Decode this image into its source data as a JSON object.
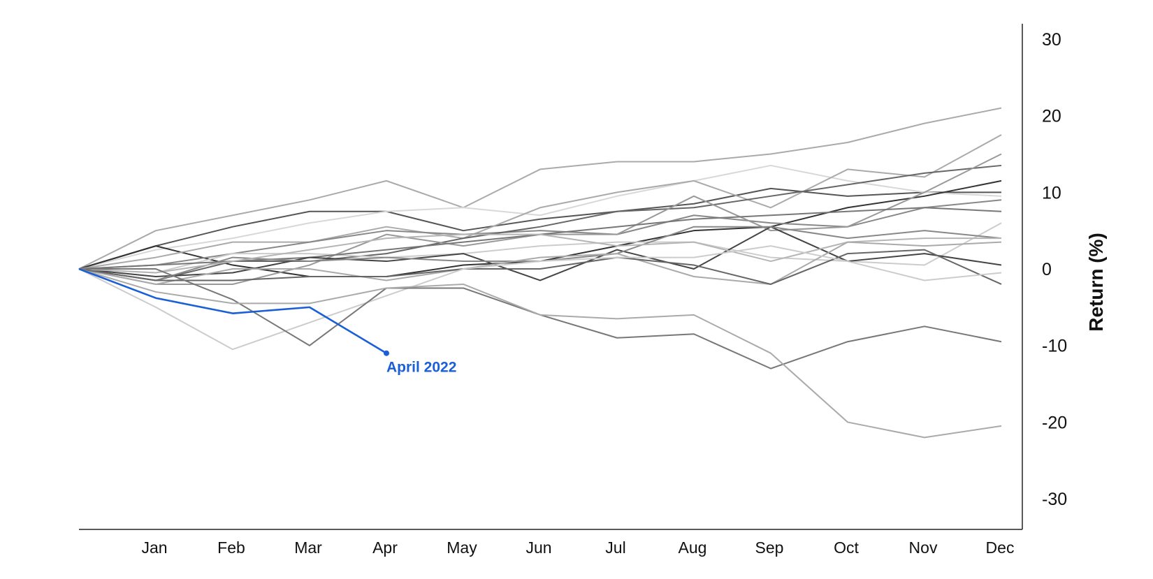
{
  "chart_data": {
    "type": "line",
    "title": "",
    "xlabel": "",
    "ylabel": "Return (%)",
    "x": [
      "",
      "Jan",
      "Feb",
      "Mar",
      "Apr",
      "May",
      "Jun",
      "Jul",
      "Aug",
      "Sep",
      "Oct",
      "Nov",
      "Dec"
    ],
    "x_tick_labels": [
      "Jan",
      "Feb",
      "Mar",
      "Apr",
      "May",
      "Jun",
      "Jul",
      "Aug",
      "Sep",
      "Oct",
      "Nov",
      "Dec"
    ],
    "ylim": [
      -34,
      32
    ],
    "y_ticks": [
      30,
      20,
      10,
      0,
      -10,
      -20,
      -30
    ],
    "y_axis_side": "right",
    "grid": false,
    "legend": "none",
    "highlight": {
      "label": "April 2022",
      "color": "#1a5fd6",
      "values": [
        0,
        -3.8,
        -5.8,
        -5.0,
        -11.0
      ]
    },
    "series": [
      {
        "color": "#aaaaaa",
        "values": [
          0,
          5.0,
          7.0,
          9.0,
          11.5,
          8.0,
          13.0,
          14.0,
          14.0,
          15.0,
          16.5,
          19.0,
          21.0
        ]
      },
      {
        "color": "#555555",
        "values": [
          0,
          3.0,
          5.5,
          7.5,
          7.5,
          5.0,
          6.5,
          7.5,
          8.5,
          10.5,
          9.5,
          10.0,
          10.0
        ]
      },
      {
        "color": "#d8d8d8",
        "values": [
          0,
          2.5,
          4.0,
          6.0,
          7.5,
          8.0,
          7.0,
          9.5,
          11.5,
          13.5,
          11.5,
          10.0,
          9.5
        ]
      },
      {
        "color": "#333333",
        "values": [
          0,
          3.0,
          0.5,
          -1.0,
          -1.0,
          0.5,
          1.0,
          3.0,
          5.0,
          5.5,
          8.0,
          9.5,
          11.5
        ]
      },
      {
        "color": "#aaaaaa",
        "values": [
          0,
          1.5,
          3.5,
          3.5,
          5.5,
          4.0,
          8.0,
          10.0,
          11.5,
          8.0,
          13.0,
          12.0,
          17.5
        ]
      },
      {
        "color": "#888888",
        "values": [
          0,
          0.5,
          2.0,
          3.5,
          5.0,
          4.5,
          5.0,
          4.5,
          7.0,
          6.0,
          5.5,
          8.0,
          9.0
        ]
      },
      {
        "color": "#666666",
        "values": [
          0,
          -1.5,
          1.0,
          1.0,
          2.0,
          4.0,
          5.5,
          7.5,
          8.0,
          9.5,
          11.0,
          12.5,
          13.5
        ]
      },
      {
        "color": "#999999",
        "values": [
          0,
          -2.0,
          -2.0,
          0.5,
          4.5,
          3.0,
          4.5,
          4.5,
          9.5,
          5.0,
          5.5,
          10.0,
          15.0
        ]
      },
      {
        "color": "#cccccc",
        "values": [
          0,
          -0.5,
          2.0,
          2.0,
          1.5,
          2.0,
          3.0,
          3.5,
          3.5,
          1.5,
          1.0,
          0.5,
          6.0
        ]
      },
      {
        "color": "#777777",
        "values": [
          0,
          0.5,
          1.0,
          1.5,
          2.5,
          3.5,
          4.5,
          5.5,
          6.5,
          7.0,
          7.5,
          8.0,
          7.5
        ]
      },
      {
        "color": "#444444",
        "values": [
          0,
          -1.0,
          -0.5,
          1.5,
          1.0,
          2.0,
          -1.5,
          2.5,
          0.0,
          5.5,
          1.0,
          2.0,
          0.5
        ]
      },
      {
        "color": "#888888",
        "values": [
          0,
          -1.5,
          1.5,
          1.0,
          1.5,
          1.0,
          1.0,
          2.0,
          5.5,
          5.5,
          4.0,
          5.0,
          4.0
        ]
      },
      {
        "color": "#b5b5b5",
        "values": [
          0,
          -0.5,
          1.0,
          2.5,
          4.0,
          4.5,
          4.5,
          3.0,
          3.5,
          1.0,
          3.5,
          4.0,
          4.0
        ]
      },
      {
        "color": "#aaaaaa",
        "values": [
          0,
          -2.0,
          0.0,
          0.0,
          -1.5,
          0.0,
          1.5,
          2.0,
          -1.0,
          -2.0,
          3.5,
          3.0,
          3.5
        ]
      },
      {
        "color": "#666666",
        "values": [
          0,
          -1.5,
          -1.5,
          -1.0,
          -1.0,
          0.0,
          0.0,
          1.5,
          0.5,
          -2.0,
          2.0,
          2.5,
          -2.0
        ]
      },
      {
        "color": "#cccccc",
        "values": [
          0,
          -5.0,
          -10.5,
          -7.0,
          -3.5,
          0.0,
          1.0,
          1.5,
          1.5,
          3.0,
          1.0,
          -1.5,
          -0.5
        ]
      },
      {
        "color": "#777777",
        "values": [
          0,
          0.0,
          -4.0,
          -10.0,
          -2.5,
          -2.5,
          -6.0,
          -9.0,
          -8.5,
          -13.0,
          -9.5,
          -7.5,
          -9.5
        ]
      },
      {
        "color": "#aaaaaa",
        "values": [
          0,
          -3.0,
          -4.5,
          -4.5,
          -2.5,
          -2.0,
          -6.0,
          -6.5,
          -6.0,
          -11.0,
          -20.0,
          -22.0,
          -20.5
        ]
      }
    ]
  }
}
